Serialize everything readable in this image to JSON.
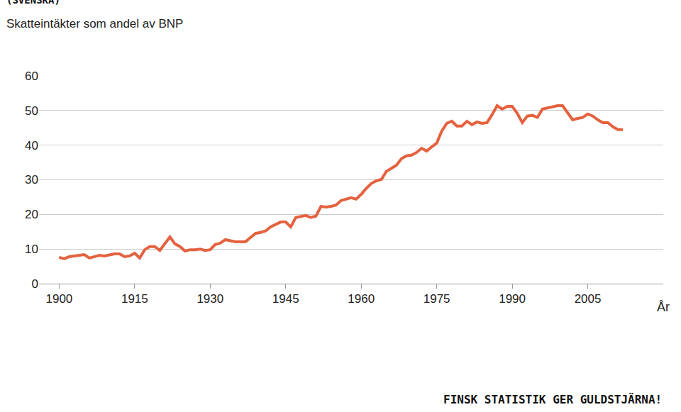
{
  "chart_data": {
    "type": "line",
    "title": "Skatteintäkter som andel av BNP",
    "xlabel": "År",
    "annotations": [
      "(SVENSKA)",
      "FINSK STATISTIK GER GULDSTJÄRNA!"
    ],
    "color": "#e4623f",
    "grid": true,
    "xlim": [
      1896,
      2020
    ],
    "xticks": [
      1900,
      1915,
      1930,
      1945,
      1960,
      1975,
      1990,
      2005
    ],
    "ylim": [
      0,
      60
    ],
    "yticks": [
      0,
      10,
      20,
      30,
      40,
      50,
      60
    ],
    "x": [
      1900,
      1901,
      1902,
      1903,
      1904,
      1905,
      1906,
      1907,
      1908,
      1909,
      1910,
      1911,
      1912,
      1913,
      1914,
      1915,
      1916,
      1917,
      1918,
      1919,
      1920,
      1921,
      1922,
      1923,
      1924,
      1925,
      1926,
      1927,
      1928,
      1929,
      1930,
      1931,
      1932,
      1933,
      1934,
      1935,
      1936,
      1937,
      1938,
      1939,
      1940,
      1941,
      1942,
      1943,
      1944,
      1945,
      1946,
      1947,
      1948,
      1949,
      1950,
      1951,
      1952,
      1953,
      1954,
      1955,
      1956,
      1957,
      1958,
      1959,
      1960,
      1961,
      1962,
      1963,
      1964,
      1965,
      1966,
      1967,
      1968,
      1969,
      1970,
      1971,
      1972,
      1973,
      1974,
      1975,
      1976,
      1977,
      1978,
      1979,
      1980,
      1981,
      1982,
      1983,
      1984,
      1985,
      1986,
      1987,
      1988,
      1989,
      1990,
      1991,
      1992,
      1993,
      1994,
      1995,
      1996,
      1997,
      1998,
      1999,
      2000,
      2001,
      2002,
      2003,
      2004,
      2005,
      2006,
      2007,
      2008,
      2009,
      2010,
      2011,
      2012
    ],
    "values": [
      7.6,
      7.2,
      7.8,
      8.0,
      8.2,
      8.4,
      7.4,
      7.8,
      8.2,
      8.0,
      8.4,
      8.6,
      8.6,
      7.8,
      8.0,
      8.8,
      7.4,
      9.8,
      10.7,
      10.7,
      9.6,
      11.7,
      13.5,
      11.5,
      10.7,
      9.4,
      9.8,
      9.8,
      10.0,
      9.6,
      9.8,
      11.3,
      11.7,
      12.7,
      12.3,
      12.1,
      12.1,
      12.1,
      13.3,
      14.5,
      14.8,
      15.2,
      16.4,
      17.2,
      17.8,
      17.8,
      16.4,
      19.1,
      19.3,
      19.7,
      19.1,
      19.5,
      22.3,
      22.1,
      22.3,
      22.7,
      24.0,
      24.4,
      24.8,
      24.4,
      25.8,
      27.5,
      28.9,
      29.7,
      30.1,
      32.4,
      33.2,
      34.2,
      36.1,
      36.9,
      37.1,
      37.9,
      39.1,
      38.3,
      39.5,
      40.6,
      44.1,
      46.3,
      46.9,
      45.5,
      45.5,
      46.9,
      45.9,
      46.7,
      46.3,
      46.5,
      48.8,
      51.4,
      50.4,
      51.2,
      51.2,
      49.2,
      46.5,
      48.4,
      48.6,
      48.0,
      50.4,
      50.8,
      51.2,
      51.4,
      51.4,
      49.2,
      47.3,
      47.7,
      48.0,
      49.0,
      48.4,
      47.3,
      46.5,
      46.5,
      45.3,
      44.5,
      44.5
    ]
  }
}
